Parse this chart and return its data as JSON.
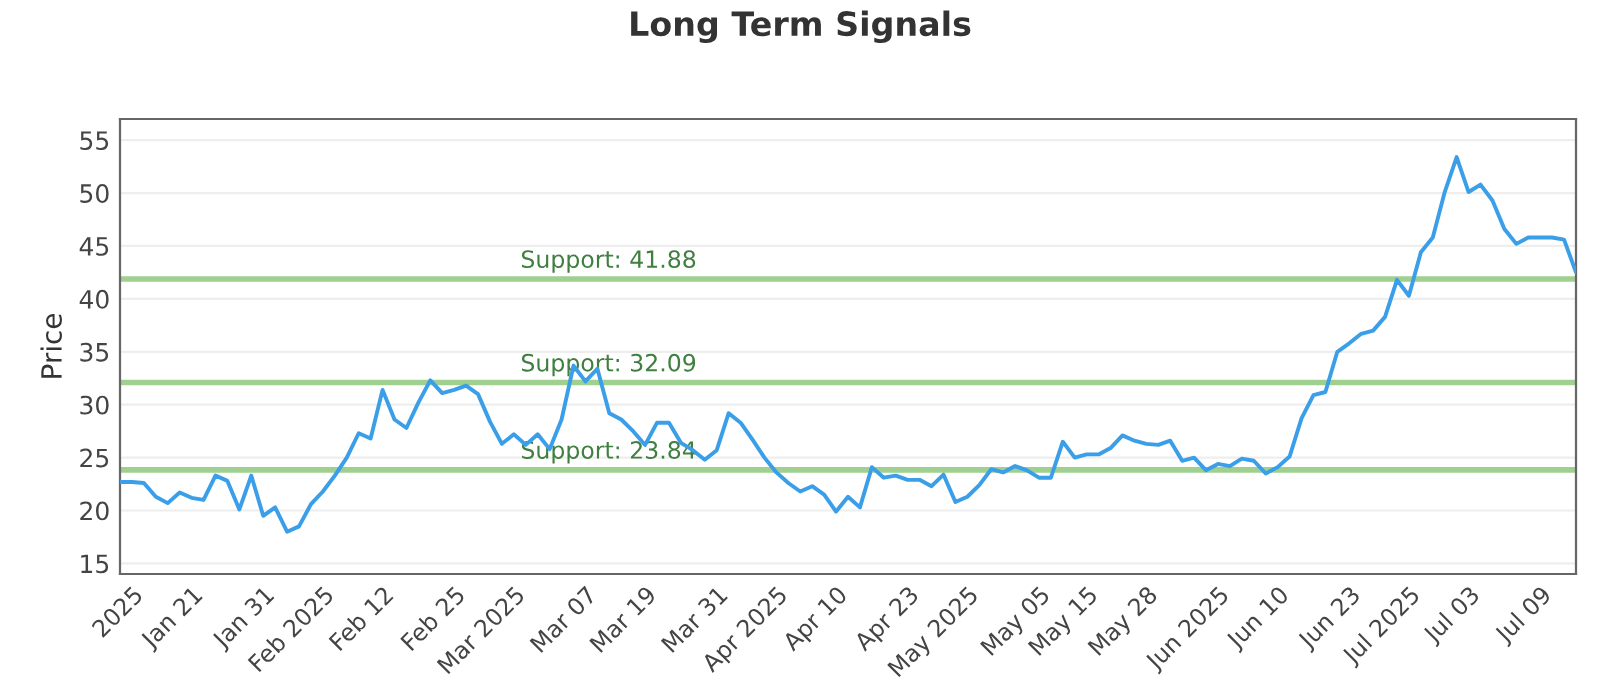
{
  "chart_data": {
    "type": "line",
    "title": "Long Term Signals",
    "ylabel": "Price",
    "categories": [
      null,
      "2025",
      null,
      null,
      null,
      null,
      "Jan 21",
      null,
      null,
      null,
      null,
      null,
      "Jan 31",
      null,
      null,
      null,
      null,
      "Feb 2025",
      null,
      null,
      null,
      null,
      "Feb 12",
      null,
      null,
      null,
      null,
      null,
      "Feb 25",
      null,
      null,
      null,
      null,
      "Mar 2025",
      null,
      null,
      null,
      null,
      null,
      "Mar 07",
      null,
      null,
      null,
      null,
      "Mar 19",
      null,
      null,
      null,
      null,
      null,
      "Mar 31",
      null,
      null,
      null,
      null,
      "Apr 2025",
      null,
      null,
      null,
      null,
      "Apr 10",
      null,
      null,
      null,
      null,
      null,
      "Apr 23",
      null,
      null,
      null,
      null,
      "May 2025",
      null,
      null,
      null,
      null,
      null,
      "May 05",
      null,
      null,
      null,
      "May 15",
      null,
      null,
      null,
      null,
      "May 28",
      null,
      null,
      null,
      null,
      null,
      "Jun 2025",
      null,
      null,
      null,
      null,
      "Jun 10",
      null,
      null,
      null,
      null,
      null,
      "Jun 23",
      null,
      null,
      null,
      null,
      "Jul 2025",
      null,
      null,
      null,
      null,
      "Jul 03",
      null,
      null,
      null,
      null,
      null,
      "Jul 09",
      null,
      null,
      null
    ],
    "series": [
      {
        "color": "#3a9ee8",
        "values": [
          22.7,
          22.7,
          22.6,
          21.3,
          20.7,
          21.7,
          21.2,
          21.0,
          23.3,
          22.8,
          20.1,
          23.3,
          19.5,
          20.3,
          18.0,
          18.5,
          20.6,
          21.8,
          23.3,
          25.0,
          27.3,
          26.8,
          31.4,
          28.6,
          27.8,
          30.2,
          32.3,
          31.1,
          31.4,
          31.8,
          31.0,
          28.4,
          26.3,
          27.2,
          26.2,
          27.2,
          25.8,
          28.6,
          33.7,
          32.2,
          33.4,
          29.2,
          28.6,
          27.5,
          26.2,
          28.3,
          28.3,
          26.4,
          25.7,
          24.8,
          25.7,
          29.2,
          28.3,
          26.7,
          25.0,
          23.6,
          22.6,
          21.8,
          22.3,
          21.5,
          19.9,
          21.3,
          20.3,
          24.1,
          23.1,
          23.3,
          22.9,
          22.9,
          22.3,
          23.4,
          20.8,
          21.3,
          22.4,
          23.9,
          23.6,
          24.2,
          23.8,
          23.1,
          23.1,
          26.5,
          25.0,
          25.3,
          25.3,
          25.9,
          27.1,
          26.6,
          26.3,
          26.2,
          26.6,
          24.7,
          25.0,
          23.8,
          24.4,
          24.2,
          24.9,
          24.7,
          23.5,
          24.1,
          25.1,
          28.7,
          30.9,
          31.2,
          35.0,
          35.8,
          36.7,
          37.0,
          38.3,
          41.8,
          40.3,
          44.4,
          45.8,
          50.1,
          53.4,
          50.1,
          50.8,
          49.3,
          46.6,
          45.2,
          45.8,
          45.8,
          45.8,
          45.6,
          42.5
        ]
      }
    ],
    "ylim": [
      14,
      57
    ],
    "yticks": [
      15,
      20,
      25,
      30,
      35,
      40,
      45,
      50,
      55
    ],
    "grid": "y",
    "ref_lines": [
      {
        "axis": "y",
        "value": 41.88,
        "label": "Support: 41.88",
        "color": "#9fd08f"
      },
      {
        "axis": "y",
        "value": 32.09,
        "label": "Support: 32.09",
        "color": "#9fd08f"
      },
      {
        "axis": "y",
        "value": 23.84,
        "label": "Support: 23.84",
        "color": "#9fd08f"
      }
    ]
  }
}
